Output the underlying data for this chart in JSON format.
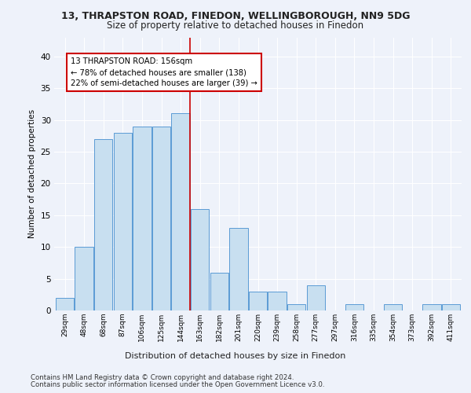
{
  "title_line1": "13, THRAPSTON ROAD, FINEDON, WELLINGBOROUGH, NN9 5DG",
  "title_line2": "Size of property relative to detached houses in Finedon",
  "xlabel": "Distribution of detached houses by size in Finedon",
  "ylabel": "Number of detached properties",
  "categories": [
    "29sqm",
    "48sqm",
    "68sqm",
    "87sqm",
    "106sqm",
    "125sqm",
    "144sqm",
    "163sqm",
    "182sqm",
    "201sqm",
    "220sqm",
    "239sqm",
    "258sqm",
    "277sqm",
    "297sqm",
    "316sqm",
    "335sqm",
    "354sqm",
    "373sqm",
    "392sqm",
    "411sqm"
  ],
  "values": [
    2,
    10,
    27,
    28,
    29,
    29,
    31,
    16,
    6,
    13,
    3,
    3,
    1,
    4,
    0,
    1,
    0,
    1,
    0,
    1,
    1
  ],
  "bar_color": "#c8dff0",
  "bar_edge_color": "#5b9bd5",
  "annotation_line1": "13 THRAPSTON ROAD: 156sqm",
  "annotation_line2": "← 78% of detached houses are smaller (138)",
  "annotation_line3": "22% of semi-detached houses are larger (39) →",
  "ylim": [
    0,
    43
  ],
  "yticks": [
    0,
    5,
    10,
    15,
    20,
    25,
    30,
    35,
    40
  ],
  "footer_line1": "Contains HM Land Registry data © Crown copyright and database right 2024.",
  "footer_line2": "Contains public sector information licensed under the Open Government Licence v3.0.",
  "background_color": "#eef2fa"
}
